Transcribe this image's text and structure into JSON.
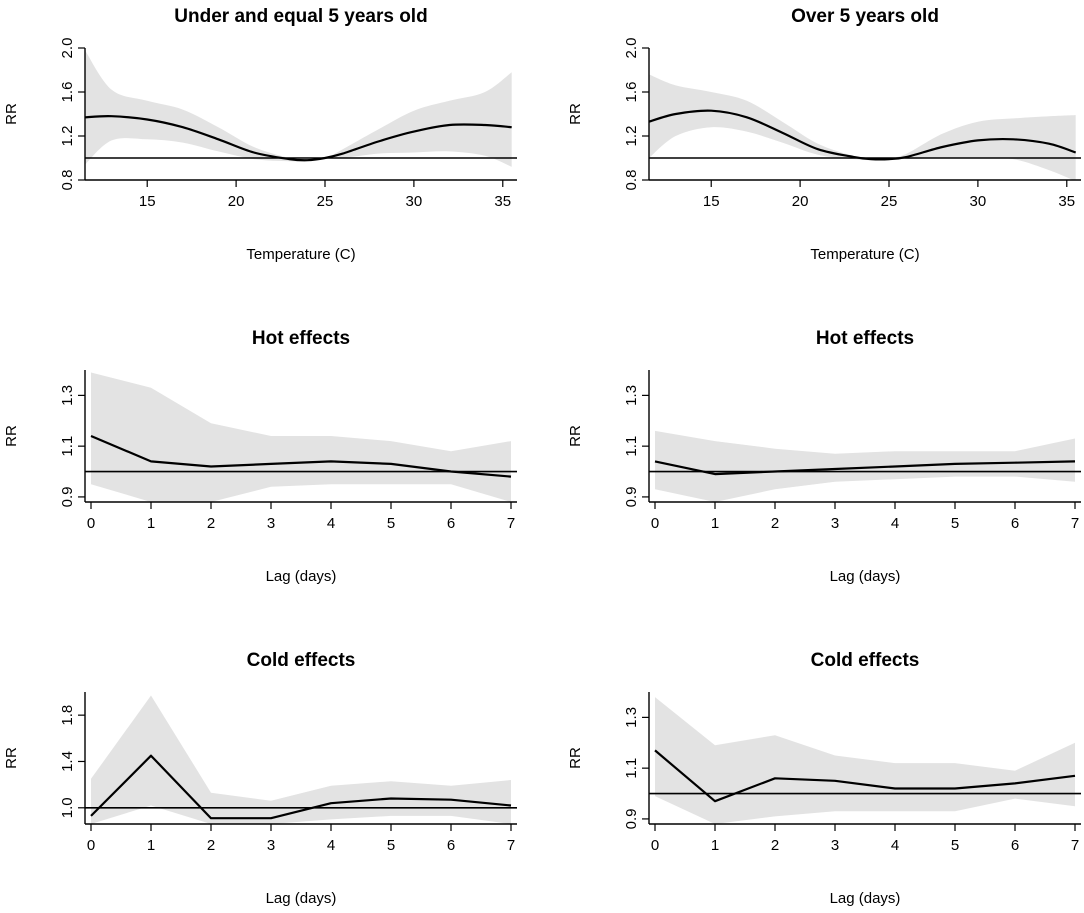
{
  "figure": {
    "colors": {
      "ci_band": "#e3e3e3",
      "line": "#000000",
      "reference": "#000000",
      "axis": "#000000"
    }
  },
  "chart_data": [
    {
      "type": "area",
      "title": "Under and equal 5 years old",
      "xlabel": "Temperature (C)",
      "ylabel": "RR",
      "xlim": [
        11.5,
        35.8
      ],
      "ylim": [
        0.8,
        2.0
      ],
      "x_ticks": [
        "15",
        "20",
        "25",
        "30",
        "35"
      ],
      "y_ticks": [
        "0.8",
        "1.2",
        "1.6",
        "2.0"
      ],
      "reference_line": 1.0,
      "series": [
        {
          "name": "RR",
          "x": [
            11.5,
            13,
            15,
            17,
            19,
            21,
            23,
            24,
            25,
            26,
            28,
            30,
            32,
            34,
            35.5
          ],
          "values": [
            1.37,
            1.38,
            1.35,
            1.28,
            1.17,
            1.05,
            0.99,
            0.98,
            1.0,
            1.04,
            1.15,
            1.24,
            1.3,
            1.3,
            1.28
          ]
        },
        {
          "name": "95% CI upper",
          "x": [
            11.5,
            13,
            15,
            17,
            19,
            21,
            23,
            24,
            25,
            26,
            28,
            30,
            32,
            34,
            35.5
          ],
          "values": [
            1.98,
            1.62,
            1.52,
            1.44,
            1.28,
            1.1,
            1.0,
            0.99,
            1.0,
            1.08,
            1.26,
            1.43,
            1.52,
            1.6,
            1.78
          ]
        },
        {
          "name": "95% CI lower",
          "x": [
            11.5,
            13,
            15,
            17,
            19,
            21,
            23,
            24,
            25,
            26,
            28,
            30,
            32,
            34,
            35.5
          ],
          "values": [
            0.94,
            1.16,
            1.17,
            1.14,
            1.06,
            0.99,
            0.97,
            0.97,
            1.0,
            1.0,
            1.04,
            1.05,
            1.06,
            1.02,
            0.92
          ]
        }
      ]
    },
    {
      "type": "area",
      "title": "Over 5 years old",
      "xlabel": "Temperature (C)",
      "ylabel": "RR",
      "xlim": [
        11.5,
        35.8
      ],
      "ylim": [
        0.8,
        2.0
      ],
      "x_ticks": [
        "15",
        "20",
        "25",
        "30",
        "35"
      ],
      "y_ticks": [
        "0.8",
        "1.2",
        "1.6",
        "2.0"
      ],
      "reference_line": 1.0,
      "series": [
        {
          "name": "RR",
          "x": [
            11.5,
            13,
            15,
            17,
            19,
            21,
            23,
            24,
            25,
            26,
            28,
            30,
            32,
            34,
            35.5
          ],
          "values": [
            1.33,
            1.4,
            1.43,
            1.37,
            1.23,
            1.08,
            1.01,
            0.99,
            0.99,
            1.01,
            1.1,
            1.16,
            1.17,
            1.13,
            1.05
          ]
        },
        {
          "name": "95% CI upper",
          "x": [
            11.5,
            13,
            15,
            17,
            19,
            21,
            23,
            24,
            25,
            26,
            28,
            30,
            32,
            34,
            35.5
          ],
          "values": [
            1.76,
            1.66,
            1.6,
            1.52,
            1.33,
            1.13,
            1.02,
            1.0,
            1.0,
            1.04,
            1.22,
            1.33,
            1.36,
            1.38,
            1.39
          ]
        },
        {
          "name": "95% CI lower",
          "x": [
            11.5,
            13,
            15,
            17,
            19,
            21,
            23,
            24,
            25,
            26,
            28,
            30,
            32,
            34,
            35.5
          ],
          "values": [
            1.0,
            1.2,
            1.28,
            1.24,
            1.14,
            1.03,
            0.99,
            0.98,
            0.99,
            0.99,
            1.0,
            1.0,
            0.99,
            0.89,
            0.79
          ]
        }
      ]
    },
    {
      "type": "area",
      "title": "Hot effects",
      "xlabel": "Lag (days)",
      "ylabel": "RR",
      "xlim": [
        -0.1,
        7.1
      ],
      "ylim": [
        0.88,
        1.4
      ],
      "x_ticks": [
        "0",
        "1",
        "2",
        "3",
        "4",
        "5",
        "6",
        "7"
      ],
      "y_ticks": [
        "0.9",
        "1.1",
        "1.3"
      ],
      "reference_line": 1.0,
      "series": [
        {
          "name": "RR",
          "x": [
            0,
            1,
            2,
            3,
            4,
            5,
            6,
            7
          ],
          "values": [
            1.14,
            1.04,
            1.02,
            1.03,
            1.04,
            1.03,
            1.0,
            0.98
          ]
        },
        {
          "name": "95% CI upper",
          "x": [
            0,
            1,
            2,
            3,
            4,
            5,
            6,
            7
          ],
          "values": [
            1.39,
            1.33,
            1.19,
            1.14,
            1.14,
            1.12,
            1.08,
            1.12
          ]
        },
        {
          "name": "95% CI lower",
          "x": [
            0,
            1,
            2,
            3,
            4,
            5,
            6,
            7
          ],
          "values": [
            0.95,
            0.88,
            0.88,
            0.94,
            0.95,
            0.95,
            0.95,
            0.88
          ]
        }
      ]
    },
    {
      "type": "area",
      "title": "Hot effects",
      "xlabel": "Lag (days)",
      "ylabel": "RR",
      "xlim": [
        -0.1,
        7.1
      ],
      "ylim": [
        0.88,
        1.4
      ],
      "x_ticks": [
        "0",
        "1",
        "2",
        "3",
        "4",
        "5",
        "6",
        "7"
      ],
      "y_ticks": [
        "0.9",
        "1.1",
        "1.3"
      ],
      "reference_line": 1.0,
      "series": [
        {
          "name": "RR",
          "x": [
            0,
            1,
            2,
            3,
            4,
            5,
            6,
            7
          ],
          "values": [
            1.04,
            0.99,
            1.0,
            1.01,
            1.02,
            1.03,
            1.035,
            1.04
          ]
        },
        {
          "name": "95% CI upper",
          "x": [
            0,
            1,
            2,
            3,
            4,
            5,
            6,
            7
          ],
          "values": [
            1.16,
            1.12,
            1.09,
            1.07,
            1.08,
            1.08,
            1.08,
            1.13
          ]
        },
        {
          "name": "95% CI lower",
          "x": [
            0,
            1,
            2,
            3,
            4,
            5,
            6,
            7
          ],
          "values": [
            0.93,
            0.88,
            0.93,
            0.96,
            0.97,
            0.98,
            0.98,
            0.96
          ]
        }
      ]
    },
    {
      "type": "area",
      "title": "Cold effects",
      "xlabel": "Lag (days)",
      "ylabel": "RR",
      "xlim": [
        -0.1,
        7.1
      ],
      "ylim": [
        0.86,
        2.0
      ],
      "x_ticks": [
        "0",
        "1",
        "2",
        "3",
        "4",
        "5",
        "6",
        "7"
      ],
      "y_ticks": [
        "1.0",
        "1.4",
        "1.8"
      ],
      "reference_line": 1.0,
      "series": [
        {
          "name": "RR",
          "x": [
            0,
            1,
            2,
            3,
            4,
            5,
            6,
            7
          ],
          "values": [
            0.93,
            1.45,
            0.91,
            0.91,
            1.04,
            1.08,
            1.07,
            1.02
          ]
        },
        {
          "name": "95% CI upper",
          "x": [
            0,
            1,
            2,
            3,
            4,
            5,
            6,
            7
          ],
          "values": [
            1.25,
            1.97,
            1.13,
            1.06,
            1.19,
            1.23,
            1.19,
            1.24
          ]
        },
        {
          "name": "95% CI lower",
          "x": [
            0,
            1,
            2,
            3,
            4,
            5,
            6,
            7
          ],
          "values": [
            0.86,
            1.02,
            0.86,
            0.86,
            0.9,
            0.93,
            0.93,
            0.86
          ]
        }
      ]
    },
    {
      "type": "area",
      "title": "Cold effects",
      "xlabel": "Lag (days)",
      "ylabel": "RR",
      "xlim": [
        -0.1,
        7.1
      ],
      "ylim": [
        0.88,
        1.4
      ],
      "x_ticks": [
        "0",
        "1",
        "2",
        "3",
        "4",
        "5",
        "6",
        "7"
      ],
      "y_ticks": [
        "0.9",
        "1.1",
        "1.3"
      ],
      "reference_line": 1.0,
      "series": [
        {
          "name": "RR",
          "x": [
            0,
            1,
            2,
            3,
            4,
            5,
            6,
            7
          ],
          "values": [
            1.17,
            0.97,
            1.06,
            1.05,
            1.02,
            1.02,
            1.04,
            1.07
          ]
        },
        {
          "name": "95% CI upper",
          "x": [
            0,
            1,
            2,
            3,
            4,
            5,
            6,
            7
          ],
          "values": [
            1.38,
            1.19,
            1.23,
            1.15,
            1.12,
            1.12,
            1.09,
            1.2
          ]
        },
        {
          "name": "95% CI lower",
          "x": [
            0,
            1,
            2,
            3,
            4,
            5,
            6,
            7
          ],
          "values": [
            0.99,
            0.88,
            0.91,
            0.93,
            0.93,
            0.93,
            0.98,
            0.95
          ]
        }
      ]
    }
  ]
}
